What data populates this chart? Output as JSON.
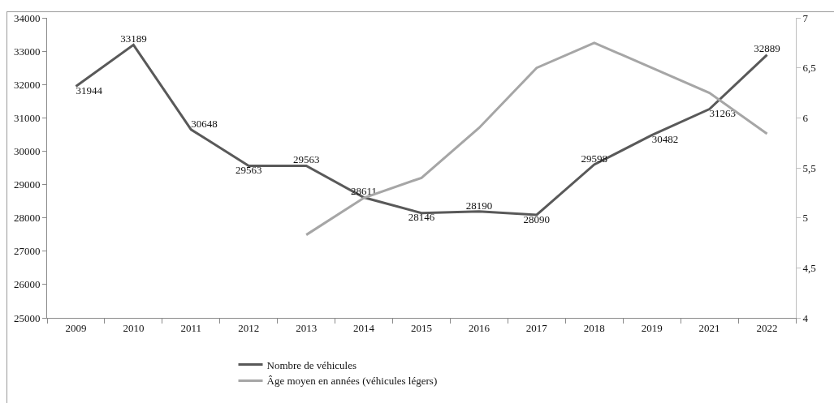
{
  "chart_data": {
    "type": "line",
    "categories": [
      "2009",
      "2010",
      "2011",
      "2012",
      "2013",
      "2014",
      "2015",
      "2016",
      "2017",
      "2018",
      "2019",
      "2021",
      "2022"
    ],
    "series": [
      {
        "name": "Nombre de véhicules",
        "color": "#595959",
        "values": [
          31944,
          33189,
          30648,
          29563,
          29563,
          28611,
          28146,
          28190,
          28090,
          29598,
          30482,
          31263,
          32889
        ],
        "value_labels": [
          "31944",
          "33189",
          "30648",
          "29563",
          "29563",
          "28611",
          "28146",
          "28190",
          "28090",
          "29598",
          "30482",
          "31263",
          "32889"
        ]
      },
      {
        "name": "Âge moyen en années (véhicules légers)",
        "color": "#a6a6a6",
        "axis": "y2",
        "values": [
          null,
          null,
          null,
          null,
          4.83,
          5.2,
          5.4,
          5.9,
          6.5,
          6.75,
          6.5,
          6.25,
          5.84
        ]
      }
    ],
    "ylim": [
      25000,
      34000
    ],
    "yticks": [
      25000,
      26000,
      27000,
      28000,
      29000,
      30000,
      31000,
      32000,
      33000,
      34000
    ],
    "y2lim": [
      4,
      7
    ],
    "y2ticks": [
      4,
      {
        "value": 4.5,
        "label": "4,5"
      },
      5,
      {
        "value": 5.5,
        "label": "5,5"
      },
      6,
      {
        "value": 6.5,
        "label": "6,5"
      },
      7
    ],
    "grid": false,
    "legend": "bottom",
    "marker": "none",
    "line_style": "solid"
  }
}
